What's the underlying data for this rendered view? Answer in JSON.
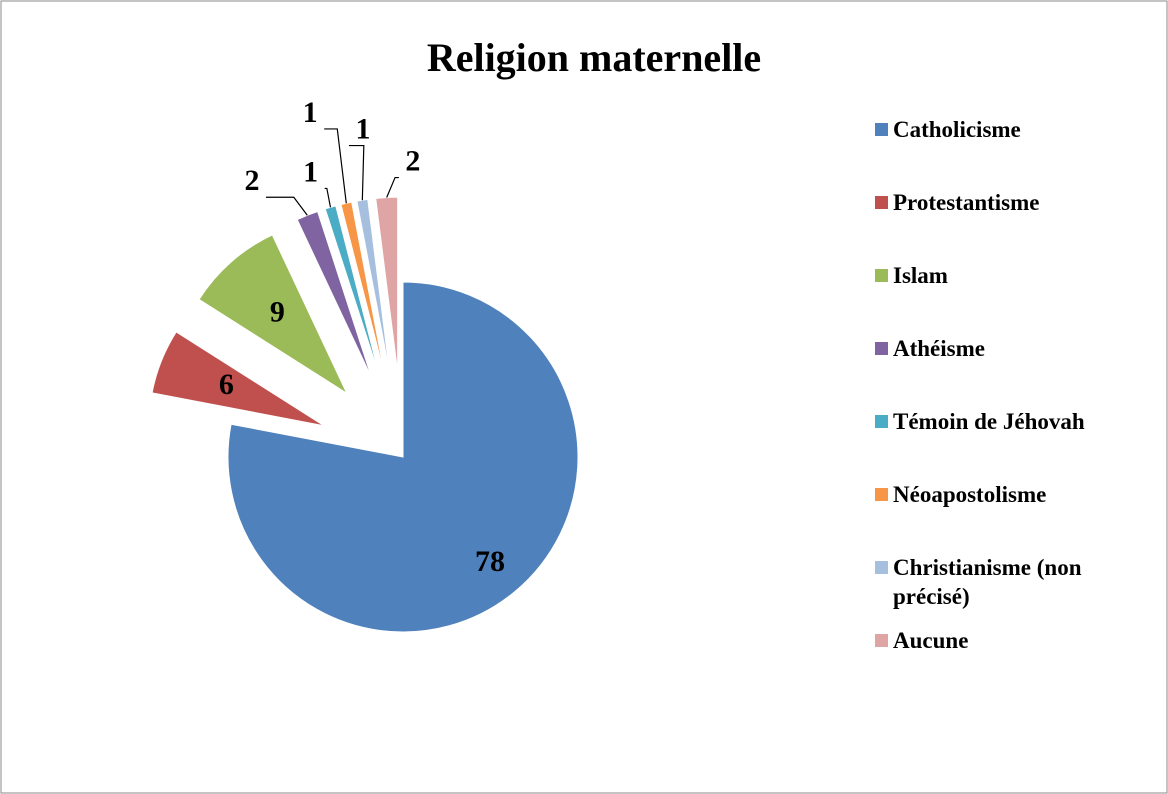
{
  "chart_data": {
    "type": "pie",
    "title": "Religion maternelle",
    "categories": [
      "Catholicisme",
      "Protestantisme",
      "Islam",
      "Athéisme",
      "Témoin de Jéhovah",
      "Néoapostolisme",
      "Christianisme (non précisé)",
      "Aucune"
    ],
    "values": [
      78,
      6,
      9,
      2,
      1,
      1,
      1,
      2
    ],
    "colors": [
      "#4f81bd",
      "#c0504d",
      "#9bbb59",
      "#8064a2",
      "#4bacc6",
      "#f79646",
      "#a7bfde",
      "#dfa5a4"
    ],
    "legend": "right"
  }
}
